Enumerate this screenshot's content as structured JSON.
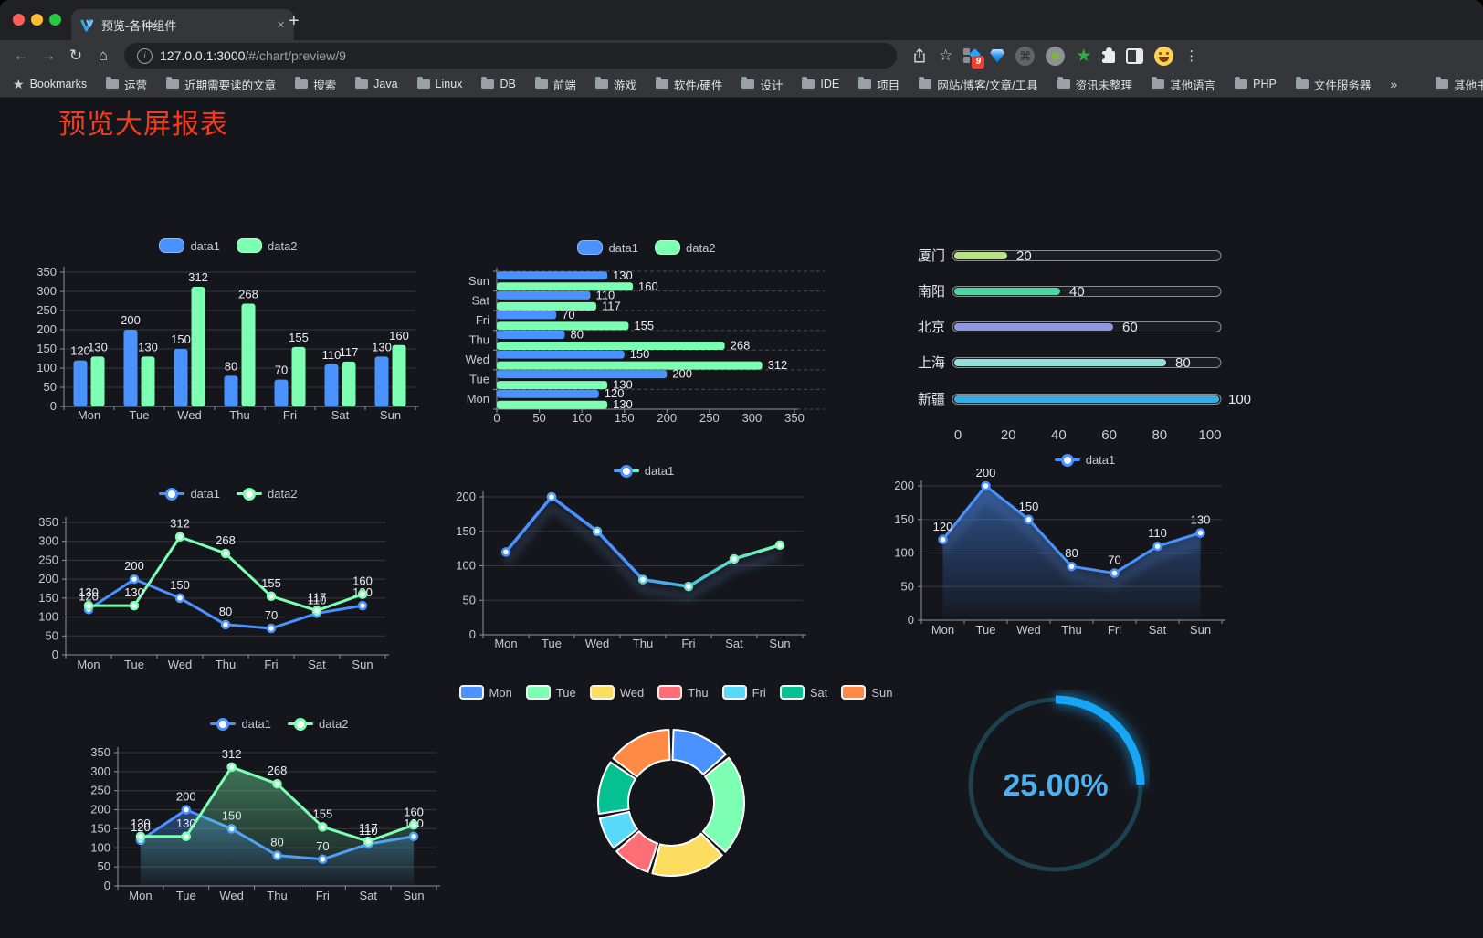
{
  "browser": {
    "traffic_lights": [
      "#ff5f57",
      "#febc2e",
      "#28c840"
    ],
    "tab_title": "预览-各种组件",
    "tab_close": "×",
    "new_tab": "+",
    "url_host": "127.0.0.1:3000",
    "url_path": "/#/chart/preview/9",
    "icons": {
      "back": "←",
      "forward": "→",
      "reload": "↻",
      "home": "⌂",
      "info": "i",
      "bookmark_star": "☆",
      "cmd": "⌘",
      "green_star": "★",
      "menu": "⋮"
    },
    "extension_badge": "9"
  },
  "bookmarks": {
    "root_icon": "★",
    "root_label": "Bookmarks",
    "items": [
      "运营",
      "近期需要读的文章",
      "搜索",
      "Java",
      "Linux",
      "DB",
      "前端",
      "游戏",
      "软件/硬件",
      "设计",
      "IDE",
      "项目",
      "网站/博客/文章/工具",
      "资讯未整理",
      "其他语言",
      "PHP",
      "文件服务器"
    ],
    "overflow": "»",
    "other_label": "其他书签"
  },
  "page": {
    "title": "预览大屏报表",
    "title_color": "#f53b1d",
    "background": "#15161c"
  },
  "palette": [
    "#4992ff",
    "#7cffb2",
    "#fddd60",
    "#ff6e76",
    "#58d9f9",
    "#05c091",
    "#ff8a45"
  ],
  "chart_data": [
    {
      "id": "grouped-bar",
      "type": "bar",
      "categories": [
        "Mon",
        "Tue",
        "Wed",
        "Thu",
        "Fri",
        "Sat",
        "Sun"
      ],
      "series": [
        {
          "name": "data1",
          "color": "#4992ff",
          "values": [
            120,
            200,
            150,
            80,
            70,
            110,
            130
          ]
        },
        {
          "name": "data2",
          "color": "#7cffb2",
          "values": [
            130,
            130,
            312,
            268,
            155,
            117,
            160
          ]
        }
      ],
      "ylim": [
        0,
        350
      ],
      "ytick_step": 50,
      "show_labels": true,
      "legend_position": "top"
    },
    {
      "id": "horizontal-bar",
      "type": "bar",
      "orientation": "horizontal",
      "categories_top_to_bottom": [
        "Sun",
        "Sat",
        "Fri",
        "Thu",
        "Wed",
        "Tue",
        "Mon"
      ],
      "series": [
        {
          "name": "data1",
          "color": "#4992ff",
          "values": [
            130,
            110,
            70,
            80,
            150,
            200,
            120
          ]
        },
        {
          "name": "data2",
          "color": "#7cffb2",
          "values": [
            160,
            117,
            155,
            268,
            312,
            130,
            130
          ]
        }
      ],
      "xlim": [
        0,
        350
      ],
      "xtick_step": 50,
      "show_labels": true,
      "legend_position": "top"
    },
    {
      "id": "progress-bars",
      "type": "bar",
      "style": "capsule-progress",
      "max": 100,
      "axis_ticks": [
        0,
        20,
        40,
        60,
        80,
        100
      ],
      "rows": [
        {
          "label": "厦门",
          "value": 20,
          "color": "#b7e187"
        },
        {
          "label": "南阳",
          "value": 40,
          "color": "#4fd6a2"
        },
        {
          "label": "北京",
          "value": 60,
          "color": "#9196e1"
        },
        {
          "label": "上海",
          "value": 80,
          "color": "#92dfdc"
        },
        {
          "label": "新疆",
          "value": 100,
          "color": "#38ace0"
        }
      ]
    },
    {
      "id": "dual-line",
      "type": "line",
      "categories": [
        "Mon",
        "Tue",
        "Wed",
        "Thu",
        "Fri",
        "Sat",
        "Sun"
      ],
      "series": [
        {
          "name": "data1",
          "color": "#4992ff",
          "values": [
            120,
            200,
            150,
            80,
            70,
            110,
            130
          ]
        },
        {
          "name": "data2",
          "color": "#7cffb2",
          "values": [
            130,
            130,
            312,
            268,
            155,
            117,
            160
          ]
        }
      ],
      "ylim": [
        0,
        350
      ],
      "ytick_step": 50,
      "show_labels": true,
      "area": false
    },
    {
      "id": "gradient-line",
      "type": "line",
      "categories": [
        "Mon",
        "Tue",
        "Wed",
        "Thu",
        "Fri",
        "Sat",
        "Sun"
      ],
      "series": [
        {
          "name": "data1",
          "color_start": "#4992ff",
          "color_end": "#7cffb2",
          "values": [
            120,
            200,
            150,
            80,
            70,
            110,
            130
          ]
        }
      ],
      "ylim": [
        0,
        200
      ],
      "ytick_step": 50,
      "show_labels": false,
      "shadow": true
    },
    {
      "id": "area-line",
      "type": "area",
      "categories": [
        "Mon",
        "Tue",
        "Wed",
        "Thu",
        "Fri",
        "Sat",
        "Sun"
      ],
      "series": [
        {
          "name": "data1",
          "color": "#4992ff",
          "values": [
            120,
            200,
            150,
            80,
            70,
            110,
            130
          ]
        }
      ],
      "ylim": [
        0,
        200
      ],
      "ytick_step": 50,
      "show_labels": true,
      "shadow": true
    },
    {
      "id": "dual-line-area",
      "type": "area",
      "categories": [
        "Mon",
        "Tue",
        "Wed",
        "Thu",
        "Fri",
        "Sat",
        "Sun"
      ],
      "series": [
        {
          "name": "data1",
          "color": "#4992ff",
          "values": [
            120,
            200,
            150,
            80,
            70,
            110,
            130
          ]
        },
        {
          "name": "data2",
          "color": "#7cffb2",
          "values": [
            130,
            130,
            312,
            268,
            155,
            117,
            160
          ]
        }
      ],
      "ylim": [
        0,
        350
      ],
      "ytick_step": 50,
      "show_labels": true,
      "area": true
    },
    {
      "id": "donut",
      "type": "pie",
      "slices": [
        {
          "label": "Mon",
          "value": 120,
          "color": "#4992ff"
        },
        {
          "label": "Tue",
          "value": 200,
          "color": "#7cffb2"
        },
        {
          "label": "Wed",
          "value": 150,
          "color": "#fddd60"
        },
        {
          "label": "Thu",
          "value": 80,
          "color": "#ff6e76"
        },
        {
          "label": "Fri",
          "value": 70,
          "color": "#58d9f9"
        },
        {
          "label": "Sat",
          "value": 110,
          "color": "#05c091"
        },
        {
          "label": "Sun",
          "value": 130,
          "color": "#ff8a45"
        }
      ],
      "legend_position": "top"
    },
    {
      "id": "gauge",
      "type": "gauge",
      "value": 25,
      "display": "25.00%",
      "color": "#16a6f5",
      "track_color": "#1c414f",
      "text_color": "#4eb2f2"
    }
  ]
}
